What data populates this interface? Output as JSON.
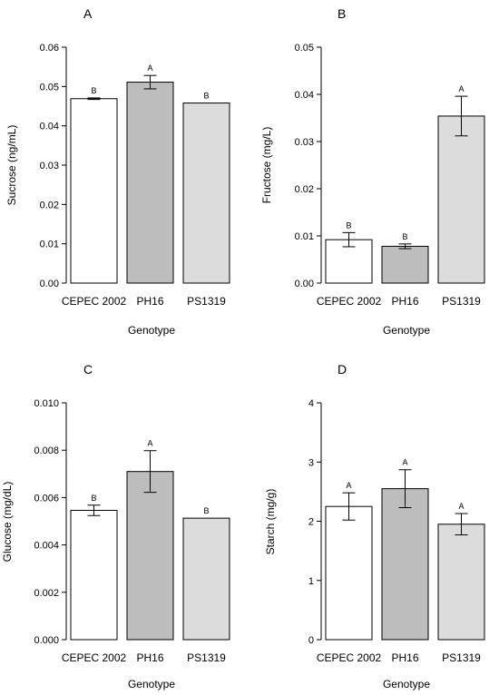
{
  "chart_data": [
    {
      "panel": "A",
      "type": "bar",
      "categories": [
        "CEPEC 2002",
        "PH16",
        "PS1319"
      ],
      "values": [
        0.0469,
        0.0511,
        0.0458
      ],
      "errors": [
        0.0002,
        0.0017,
        0
      ],
      "letters": [
        "B",
        "A",
        "B"
      ],
      "colors": [
        "#ffffff",
        "#bdbdbd",
        "#dcdcdc"
      ],
      "xlabel": "Genotype",
      "ylabel": "Sucrose (ng/mL)",
      "ylim": [
        0,
        0.06
      ],
      "yticks": [
        "0.00",
        "0.01",
        "0.02",
        "0.03",
        "0.04",
        "0.05",
        "0.06"
      ]
    },
    {
      "panel": "B",
      "type": "bar",
      "categories": [
        "CEPEC 2002",
        "PH16",
        "PS1319"
      ],
      "values": [
        0.0092,
        0.0078,
        0.0354
      ],
      "errors": [
        0.0015,
        0.0005,
        0.0042
      ],
      "letters": [
        "B",
        "B",
        "A"
      ],
      "colors": [
        "#ffffff",
        "#bdbdbd",
        "#dcdcdc"
      ],
      "xlabel": "Genotype",
      "ylabel": "Fructose (mg/L)",
      "ylim": [
        0,
        0.05
      ],
      "yticks": [
        "0.00",
        "0.01",
        "0.02",
        "0.03",
        "0.04",
        "0.05"
      ]
    },
    {
      "panel": "C",
      "type": "bar",
      "categories": [
        "CEPEC 2002",
        "PH16",
        "PS1319"
      ],
      "values": [
        0.00546,
        0.0071,
        0.00513
      ],
      "errors": [
        0.00022,
        0.00088,
        0
      ],
      "letters": [
        "B",
        "A",
        "B"
      ],
      "colors": [
        "#ffffff",
        "#bdbdbd",
        "#dcdcdc"
      ],
      "xlabel": "Genotype",
      "ylabel": "Glucose (mg/dL)",
      "ylim": [
        0,
        0.01
      ],
      "yticks": [
        "0.000",
        "0.002",
        "0.004",
        "0.006",
        "0.008",
        "0.010"
      ]
    },
    {
      "panel": "D",
      "type": "bar",
      "categories": [
        "CEPEC 2002",
        "PH16",
        "PS1319"
      ],
      "values": [
        2.25,
        2.55,
        1.95
      ],
      "errors": [
        0.23,
        0.32,
        0.18
      ],
      "letters": [
        "A",
        "A",
        "A"
      ],
      "colors": [
        "#ffffff",
        "#bdbdbd",
        "#dcdcdc"
      ],
      "xlabel": "Genotype",
      "ylabel": "Starch (mg/g)",
      "ylim": [
        0,
        4
      ],
      "yticks": [
        "0",
        "1",
        "2",
        "3",
        "4"
      ]
    }
  ]
}
